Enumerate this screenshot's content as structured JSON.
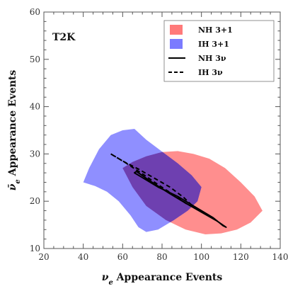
{
  "chart_data": {
    "type": "area",
    "experiment_label": "T2K",
    "xlabel": "ν_e Appearance Events",
    "ylabel": "ν̄_e Appearance Events",
    "xlabel_parts": {
      "symbol": "ν",
      "sub": "e",
      "rest": " Appearance Events"
    },
    "ylabel_parts": {
      "symbol": "ν̄",
      "sub": "e",
      "rest": " Appearance Events"
    },
    "xlim": [
      20,
      140
    ],
    "ylim": [
      10,
      60
    ],
    "xticks": [
      20,
      40,
      60,
      80,
      100,
      120,
      140
    ],
    "yticks": [
      10,
      20,
      30,
      40,
      50,
      60
    ],
    "grid": false,
    "legend_position": "top-right",
    "colors": {
      "nh_fill": "#ff7a7a",
      "ih_fill": "#7b7bff",
      "overlap_fill": "#6a3aa8",
      "nh_line": "#000000",
      "ih_line": "#000000"
    },
    "series": [
      {
        "name": "NH 3+1",
        "kind": "region",
        "points": [
          [
            60,
            27
          ],
          [
            65,
            23
          ],
          [
            72,
            19
          ],
          [
            82,
            16
          ],
          [
            92,
            14
          ],
          [
            102,
            13
          ],
          [
            110,
            13.2
          ],
          [
            118,
            14
          ],
          [
            125,
            15.5
          ],
          [
            131,
            18
          ],
          [
            127,
            21
          ],
          [
            120,
            24
          ],
          [
            112,
            27
          ],
          [
            104,
            29
          ],
          [
            96,
            30
          ],
          [
            88,
            30.6
          ],
          [
            80,
            30.4
          ],
          [
            72,
            29.5
          ],
          [
            65,
            28.3
          ]
        ]
      },
      {
        "name": "IH 3+1",
        "kind": "region",
        "points": [
          [
            40,
            24
          ],
          [
            43,
            27
          ],
          [
            48,
            31
          ],
          [
            54,
            34
          ],
          [
            60,
            35
          ],
          [
            66,
            35.3
          ],
          [
            72,
            33
          ],
          [
            80,
            30.5
          ],
          [
            88,
            28
          ],
          [
            95,
            25.5
          ],
          [
            100,
            23
          ],
          [
            98,
            20
          ],
          [
            93,
            18
          ],
          [
            86,
            16
          ],
          [
            78,
            14
          ],
          [
            72,
            13.5
          ],
          [
            68,
            14.5
          ],
          [
            64,
            17
          ],
          [
            58,
            20
          ],
          [
            52,
            22
          ],
          [
            46,
            23.2
          ]
        ]
      },
      {
        "name": "NH 3ν",
        "kind": "contour",
        "dash": "solid",
        "points": [
          [
            66,
            26
          ],
          [
            70,
            25
          ],
          [
            78,
            23
          ],
          [
            88,
            21
          ],
          [
            98,
            18.5
          ],
          [
            106,
            16.5
          ],
          [
            111,
            14.8
          ],
          [
            112.5,
            14.5
          ],
          [
            108,
            15.8
          ],
          [
            100,
            17.7
          ],
          [
            92,
            19.6
          ],
          [
            84,
            21.6
          ],
          [
            76,
            23.7
          ],
          [
            70,
            25.4
          ],
          [
            67,
            26.3
          ]
        ]
      },
      {
        "name": "IH 3ν",
        "kind": "contour",
        "dash": "dashed",
        "points": [
          [
            54,
            30
          ],
          [
            60,
            28.5
          ],
          [
            68,
            26.8
          ],
          [
            76,
            24.9
          ],
          [
            84,
            23
          ],
          [
            91,
            20.8
          ],
          [
            96,
            18.8
          ],
          [
            93,
            19.3
          ],
          [
            86,
            21.3
          ],
          [
            78,
            23.5
          ],
          [
            70,
            25.8
          ],
          [
            62,
            28
          ],
          [
            56,
            29.5
          ]
        ]
      }
    ]
  }
}
